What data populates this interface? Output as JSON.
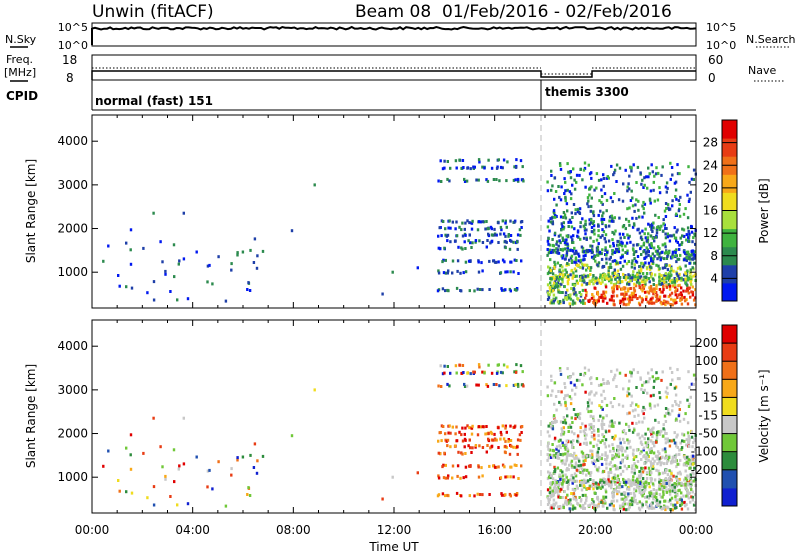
{
  "header": {
    "title": "Unwin (fitACF)",
    "beam": "Beam 08",
    "date_range": "01/Feb/2016 - 02/Feb/2016"
  },
  "panels": {
    "nsky": {
      "left_label": "N.Sky",
      "right_label": "N.Search",
      "left_ticks": [
        "10^5",
        "10^0"
      ],
      "right_ticks": [
        "10^5",
        "10^0"
      ]
    },
    "freq": {
      "left_label_1": "Freq.",
      "left_label_2": "[MHz]",
      "left_ticks": [
        "18",
        "8"
      ],
      "right_label": "Nave",
      "right_ticks": [
        "60",
        "0"
      ]
    },
    "cpid": {
      "label": "CPID",
      "modes": [
        {
          "name": "normal (fast) 151",
          "start_hour": 0
        },
        {
          "name": "themis 3300",
          "start_hour": 18
        }
      ]
    }
  },
  "chart_data": [
    {
      "type": "heatmap",
      "name": "power",
      "ylabel": "Slant Range [km]",
      "ylim": [
        180,
        4600
      ],
      "yticks": [
        1000,
        2000,
        3000,
        4000
      ],
      "xlim": [
        0,
        24
      ],
      "colorbar": {
        "label": "Power [dB]",
        "ticks": [
          "4",
          "8",
          "12",
          "16",
          "20",
          "24",
          "28"
        ],
        "colors": [
          "#0018f0",
          "#1e3fa8",
          "#2c8a4e",
          "#3fb33f",
          "#a8e03c",
          "#f0dc1e",
          "#f8a818",
          "#f07018",
          "#e83c14",
          "#e00000"
        ]
      }
    },
    {
      "type": "heatmap",
      "name": "velocity",
      "ylabel": "Slant Range [km]",
      "ylim": [
        180,
        4600
      ],
      "yticks": [
        1000,
        2000,
        3000,
        4000
      ],
      "xlim": [
        0,
        24
      ],
      "colorbar": {
        "label": "Velocity [m s⁻¹]",
        "ticks": [
          "200",
          "100",
          "50",
          "15",
          "-15",
          "-50",
          "-100",
          "-200"
        ],
        "colors": [
          "#1020d0",
          "#2050b0",
          "#2c8c3c",
          "#70c838",
          "#c8c8c8",
          "#f0dc1e",
          "#f8a818",
          "#f07018",
          "#e83c14",
          "#e00000"
        ]
      }
    }
  ],
  "x_axis": {
    "ticks": [
      "00:00",
      "04:00",
      "08:00",
      "12:00",
      "16:00",
      "20:00",
      "00:00"
    ],
    "label": "Time UT"
  }
}
